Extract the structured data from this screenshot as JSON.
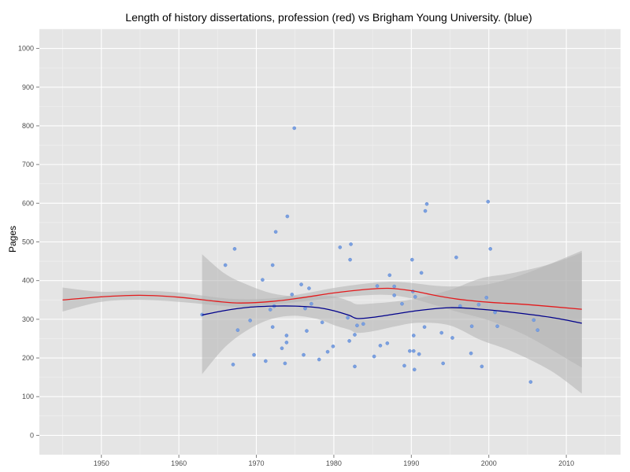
{
  "chart_data": {
    "type": "scatter",
    "title": "Length of history dissertations, profession (red) vs Brigham Young University. (blue)",
    "xlabel": "",
    "ylabel": "Pages",
    "xlim": [
      1942,
      2017
    ],
    "ylim": [
      -50,
      1050
    ],
    "x_ticks": [
      1950,
      1960,
      1970,
      1980,
      1990,
      2000,
      2010
    ],
    "y_ticks": [
      0,
      100,
      200,
      300,
      400,
      500,
      600,
      700,
      800,
      900,
      1000
    ],
    "colors": {
      "panel": "#e5e5e5",
      "grid_major": "#ffffff",
      "grid_minor": "#f2f2f2",
      "points": "#7aa0e0",
      "profession": "#e31a1c",
      "byu": "#00008b",
      "band": "#b3b3b3"
    },
    "points": [
      {
        "x": 1963,
        "y": 312
      },
      {
        "x": 1966,
        "y": 440
      },
      {
        "x": 1967,
        "y": 183
      },
      {
        "x": 1967.2,
        "y": 482
      },
      {
        "x": 1967.6,
        "y": 272
      },
      {
        "x": 1969.2,
        "y": 297
      },
      {
        "x": 1969.7,
        "y": 208
      },
      {
        "x": 1970.8,
        "y": 402
      },
      {
        "x": 1971.2,
        "y": 192
      },
      {
        "x": 1971.8,
        "y": 325
      },
      {
        "x": 1972.1,
        "y": 280
      },
      {
        "x": 1972.1,
        "y": 440
      },
      {
        "x": 1972.3,
        "y": 334
      },
      {
        "x": 1972.5,
        "y": 526
      },
      {
        "x": 1973.3,
        "y": 225
      },
      {
        "x": 1973.7,
        "y": 186
      },
      {
        "x": 1973.9,
        "y": 240
      },
      {
        "x": 1973.9,
        "y": 258
      },
      {
        "x": 1974,
        "y": 566
      },
      {
        "x": 1974.6,
        "y": 364
      },
      {
        "x": 1974.9,
        "y": 794
      },
      {
        "x": 1975.8,
        "y": 390
      },
      {
        "x": 1976.1,
        "y": 208
      },
      {
        "x": 1976.3,
        "y": 328
      },
      {
        "x": 1976.5,
        "y": 270
      },
      {
        "x": 1976.8,
        "y": 380
      },
      {
        "x": 1977.1,
        "y": 340
      },
      {
        "x": 1978.1,
        "y": 196
      },
      {
        "x": 1978.5,
        "y": 292
      },
      {
        "x": 1979.2,
        "y": 216
      },
      {
        "x": 1979.9,
        "y": 230
      },
      {
        "x": 1980.8,
        "y": 486
      },
      {
        "x": 1981.8,
        "y": 304
      },
      {
        "x": 1982,
        "y": 244
      },
      {
        "x": 1982.1,
        "y": 454
      },
      {
        "x": 1982.2,
        "y": 494
      },
      {
        "x": 1982.7,
        "y": 178
      },
      {
        "x": 1982.7,
        "y": 260
      },
      {
        "x": 1983,
        "y": 284
      },
      {
        "x": 1983.8,
        "y": 288
      },
      {
        "x": 1985.2,
        "y": 204
      },
      {
        "x": 1985.6,
        "y": 386
      },
      {
        "x": 1986,
        "y": 232
      },
      {
        "x": 1986.9,
        "y": 238
      },
      {
        "x": 1987.2,
        "y": 414
      },
      {
        "x": 1987.8,
        "y": 385
      },
      {
        "x": 1987.8,
        "y": 362
      },
      {
        "x": 1988.8,
        "y": 340
      },
      {
        "x": 1989.1,
        "y": 180
      },
      {
        "x": 1989.8,
        "y": 218
      },
      {
        "x": 1990.1,
        "y": 454
      },
      {
        "x": 1990.2,
        "y": 372
      },
      {
        "x": 1990.3,
        "y": 258
      },
      {
        "x": 1990.3,
        "y": 218
      },
      {
        "x": 1990.4,
        "y": 170
      },
      {
        "x": 1990.5,
        "y": 358
      },
      {
        "x": 1991,
        "y": 210
      },
      {
        "x": 1991.3,
        "y": 420
      },
      {
        "x": 1991.7,
        "y": 280
      },
      {
        "x": 1991.8,
        "y": 580
      },
      {
        "x": 1992,
        "y": 598
      },
      {
        "x": 1993.9,
        "y": 265
      },
      {
        "x": 1994.1,
        "y": 186
      },
      {
        "x": 1995.3,
        "y": 252
      },
      {
        "x": 1995.8,
        "y": 460
      },
      {
        "x": 1996.3,
        "y": 334
      },
      {
        "x": 1997.7,
        "y": 212
      },
      {
        "x": 1997.8,
        "y": 282
      },
      {
        "x": 1998.7,
        "y": 338
      },
      {
        "x": 1999.1,
        "y": 178
      },
      {
        "x": 1999.7,
        "y": 356
      },
      {
        "x": 1999.9,
        "y": 604
      },
      {
        "x": 2000.2,
        "y": 482
      },
      {
        "x": 2000.8,
        "y": 318
      },
      {
        "x": 2001.1,
        "y": 282
      },
      {
        "x": 2005.4,
        "y": 138
      },
      {
        "x": 2005.8,
        "y": 298
      },
      {
        "x": 2006.3,
        "y": 272
      }
    ],
    "series": [
      {
        "x": [
          1945,
          1950,
          1955,
          1960,
          1965,
          1968,
          1972,
          1976,
          1980,
          1984,
          1987,
          1990,
          1993,
          1996,
          2000,
          2005,
          2012
        ],
        "y": [
          350,
          358,
          362,
          357,
          346,
          342,
          346,
          356,
          368,
          377,
          380,
          374,
          362,
          352,
          344,
          338,
          326
        ],
        "band_lower": [
          320,
          345,
          350,
          345,
          336,
          332,
          338,
          346,
          355,
          362,
          363,
          354,
          337,
          319,
          297,
          256,
          175
        ],
        "band_upper": [
          382,
          371,
          374,
          369,
          356,
          352,
          354,
          366,
          381,
          392,
          397,
          394,
          387,
          385,
          391,
          420,
          477
        ]
      },
      {
        "x": [
          1963,
          1966,
          1969,
          1972,
          1975,
          1978,
          1980,
          1982,
          1983,
          1985,
          1988,
          1991,
          1995,
          1999,
          2003,
          2008,
          2012
        ],
        "y": [
          311,
          323,
          331,
          334,
          334,
          330,
          322,
          310,
          302,
          305,
          314,
          323,
          330,
          326,
          318,
          305,
          290
        ],
        "band_lower": [
          158,
          229,
          274,
          301,
          309,
          300,
          285,
          273,
          265,
          269,
          282,
          291,
          284,
          246,
          217,
          167,
          108
        ],
        "band_upper": [
          468,
          417,
          388,
          367,
          359,
          360,
          359,
          347,
          339,
          341,
          346,
          355,
          376,
          406,
          419,
          443,
          472
        ]
      }
    ]
  }
}
